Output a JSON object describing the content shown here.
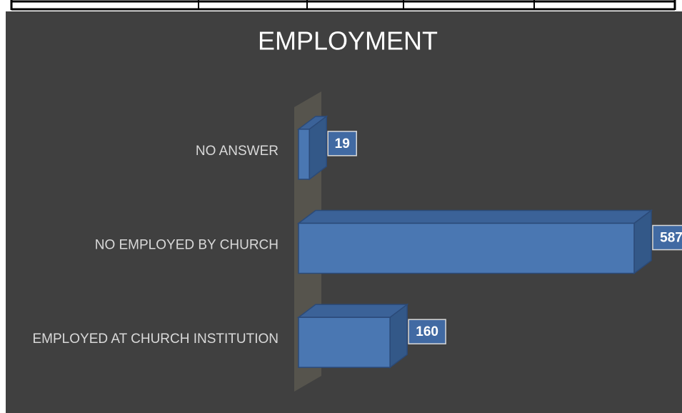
{
  "chart_data": {
    "type": "bar3d_horizontal",
    "title": "EMPLOYMENT",
    "categories": [
      "NO ANSWER",
      "NO EMPLOYED BY CHURCH",
      "EMPLOYED AT CHURCH INSTITUTION"
    ],
    "values": [
      19,
      587,
      160
    ],
    "color": "#4a77b2"
  }
}
